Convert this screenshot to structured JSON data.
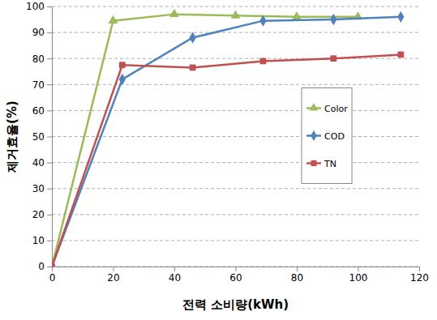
{
  "chart_data": {
    "type": "line",
    "x_label": "전력 소비량(kWh)",
    "y_label": "제거효율(%)",
    "xlim": [
      0,
      120
    ],
    "xticks": [
      0,
      20,
      40,
      60,
      80,
      100,
      120
    ],
    "ylim": [
      0,
      100
    ],
    "yticks": [
      0,
      10,
      20,
      30,
      40,
      50,
      60,
      70,
      80,
      90,
      100
    ],
    "grid": true,
    "legend": "right",
    "series": [
      {
        "name": "Color",
        "color": "#9bbb59",
        "marker": "triangle",
        "x": [
          0,
          20,
          40,
          60,
          80,
          100
        ],
        "values": [
          0,
          94.5,
          97,
          96.5,
          96,
          96
        ]
      },
      {
        "name": "COD",
        "color": "#4f81bd",
        "marker": "diamond",
        "x": [
          0,
          23,
          46,
          69,
          92,
          114
        ],
        "values": [
          0,
          72,
          88,
          94.5,
          95,
          96
        ]
      },
      {
        "name": "TN",
        "color": "#c0504d",
        "marker": "square",
        "x": [
          0,
          23,
          46,
          69,
          92,
          114
        ],
        "values": [
          0,
          77.5,
          76.5,
          79,
          80,
          81.5
        ]
      }
    ]
  }
}
